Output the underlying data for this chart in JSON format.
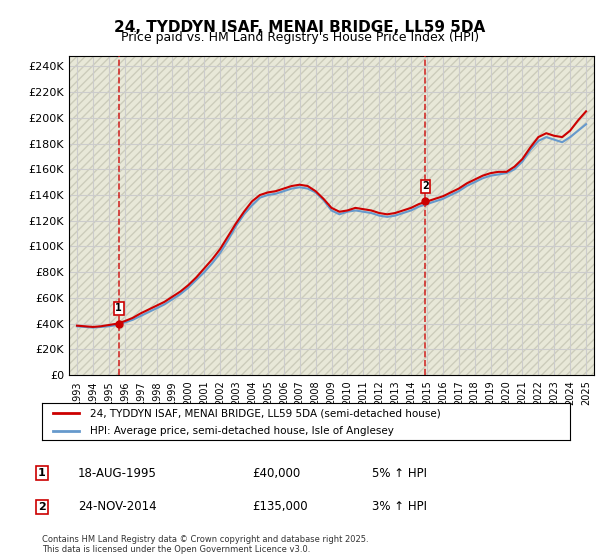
{
  "title1": "24, TYDDYN ISAF, MENAI BRIDGE, LL59 5DA",
  "title2": "Price paid vs. HM Land Registry's House Price Index (HPI)",
  "ylabel_ticks": [
    "£0",
    "£20K",
    "£40K",
    "£60K",
    "£80K",
    "£100K",
    "£120K",
    "£140K",
    "£160K",
    "£180K",
    "£200K",
    "£220K",
    "£240K"
  ],
  "ytick_values": [
    0,
    20000,
    40000,
    60000,
    80000,
    100000,
    120000,
    140000,
    160000,
    180000,
    200000,
    220000,
    240000
  ],
  "xlim_start": 1992.5,
  "xlim_end": 2025.5,
  "ylim_min": 0,
  "ylim_max": 248000,
  "background_color": "#f0f0f0",
  "plot_bg_color": "#f8f8f0",
  "grid_color": "#cccccc",
  "hpi_color": "#6699cc",
  "price_color": "#cc0000",
  "marker1_year": 1995.63,
  "marker1_value": 40000,
  "marker2_year": 2014.9,
  "marker2_value": 135000,
  "legend_label_price": "24, TYDDYN ISAF, MENAI BRIDGE, LL59 5DA (semi-detached house)",
  "legend_label_hpi": "HPI: Average price, semi-detached house, Isle of Anglesey",
  "table_row1": [
    "1",
    "18-AUG-1995",
    "£40,000",
    "5% ↑ HPI"
  ],
  "table_row2": [
    "2",
    "24-NOV-2014",
    "£135,000",
    "3% ↑ HPI"
  ],
  "copyright_text": "Contains HM Land Registry data © Crown copyright and database right 2025.\nThis data is licensed under the Open Government Licence v3.0.",
  "vline1_year": 1995.63,
  "vline2_year": 2014.9,
  "hpi_years": [
    1993,
    1993.5,
    1994,
    1994.5,
    1995,
    1995.5,
    1996,
    1996.5,
    1997,
    1997.5,
    1998,
    1998.5,
    1999,
    1999.5,
    2000,
    2000.5,
    2001,
    2001.5,
    2002,
    2002.5,
    2003,
    2003.5,
    2004,
    2004.5,
    2005,
    2005.5,
    2006,
    2006.5,
    2007,
    2007.5,
    2008,
    2008.5,
    2009,
    2009.5,
    2010,
    2010.5,
    2011,
    2011.5,
    2012,
    2012.5,
    2013,
    2013.5,
    2014,
    2014.5,
    2015,
    2015.5,
    2016,
    2016.5,
    2017,
    2017.5,
    2018,
    2018.5,
    2019,
    2019.5,
    2020,
    2020.5,
    2021,
    2021.5,
    2022,
    2022.5,
    2023,
    2023.5,
    2024,
    2024.5,
    2025
  ],
  "hpi_values": [
    38000,
    37500,
    37000,
    37500,
    38000,
    39000,
    41000,
    43000,
    46000,
    49000,
    52000,
    55000,
    59000,
    63000,
    68000,
    74000,
    80000,
    87000,
    95000,
    105000,
    116000,
    125000,
    132000,
    138000,
    140000,
    141000,
    143000,
    145000,
    146000,
    145000,
    142000,
    136000,
    128000,
    125000,
    127000,
    128000,
    127000,
    126000,
    124000,
    123000,
    124000,
    126000,
    128000,
    131000,
    133000,
    135000,
    137000,
    140000,
    143000,
    147000,
    150000,
    153000,
    155000,
    156000,
    157000,
    160000,
    166000,
    175000,
    182000,
    185000,
    183000,
    181000,
    185000,
    190000,
    195000
  ],
  "price_years": [
    1993,
    1993.5,
    1994,
    1994.5,
    1995,
    1995.5,
    1996,
    1996.5,
    1997,
    1997.5,
    1998,
    1998.5,
    1999,
    1999.5,
    2000,
    2000.5,
    2001,
    2001.5,
    2002,
    2002.5,
    2003,
    2003.5,
    2004,
    2004.5,
    2005,
    2005.5,
    2006,
    2006.5,
    2007,
    2007.5,
    2008,
    2008.5,
    2009,
    2009.5,
    2010,
    2010.5,
    2011,
    2011.5,
    2012,
    2012.5,
    2013,
    2013.5,
    2014,
    2014.5,
    2015,
    2015.5,
    2016,
    2016.5,
    2017,
    2017.5,
    2018,
    2018.5,
    2019,
    2019.5,
    2020,
    2020.5,
    2021,
    2021.5,
    2022,
    2022.5,
    2023,
    2023.5,
    2024,
    2024.5,
    2025
  ],
  "price_values": [
    38500,
    38000,
    37500,
    38000,
    39000,
    40000,
    42000,
    44500,
    48000,
    51000,
    54000,
    57000,
    61000,
    65000,
    70000,
    76000,
    83000,
    90000,
    98000,
    108000,
    118000,
    127000,
    135000,
    140000,
    142000,
    143000,
    145000,
    147000,
    148000,
    147000,
    143000,
    137000,
    130000,
    127000,
    128000,
    130000,
    129000,
    128000,
    126000,
    125000,
    126000,
    128000,
    130000,
    133000,
    135000,
    137000,
    139000,
    142000,
    145000,
    149000,
    152000,
    155000,
    157000,
    158000,
    158000,
    162000,
    168000,
    177000,
    185000,
    188000,
    186000,
    185000,
    190000,
    198000,
    205000
  ],
  "xtick_years": [
    1993,
    1994,
    1995,
    1996,
    1997,
    1998,
    1999,
    2000,
    2001,
    2002,
    2003,
    2004,
    2005,
    2006,
    2007,
    2008,
    2009,
    2010,
    2011,
    2012,
    2013,
    2014,
    2015,
    2016,
    2017,
    2018,
    2019,
    2020,
    2021,
    2022,
    2023,
    2024,
    2025
  ]
}
